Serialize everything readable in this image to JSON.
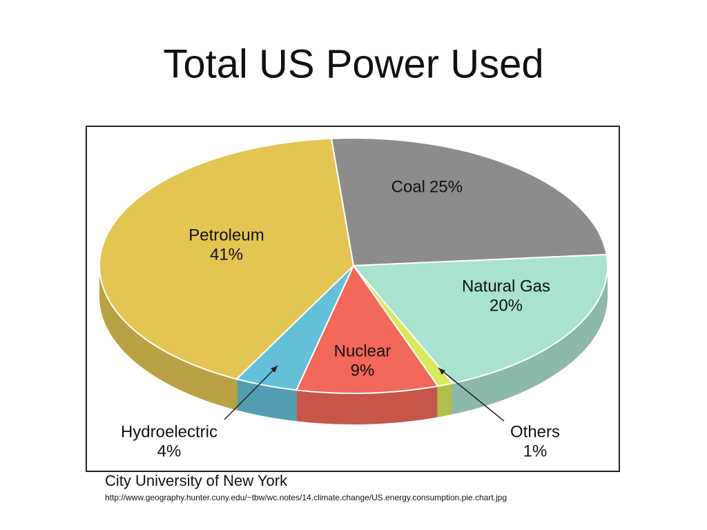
{
  "chart_data": {
    "type": "pie",
    "title": "Total US Power Used",
    "categories": [
      "Coal",
      "Natural Gas",
      "Others",
      "Nuclear",
      "Hydroelectric",
      "Petroleum"
    ],
    "values": [
      25,
      20,
      1,
      9,
      4,
      41
    ],
    "value_labels": [
      "25%",
      "20%",
      "1%",
      "9%",
      "4%",
      "41%"
    ],
    "colors": [
      "#8c8c8c",
      "#a9e2cf",
      "#d8ea5c",
      "#f2685a",
      "#64c0d8",
      "#e3c553"
    ],
    "source": "City University of New York",
    "source_url": "http://www.geography.hunter.cuny.edu/~tbw/wc.notes/14.climate.change/US.energy.consumption.pie.chart.jpg"
  }
}
